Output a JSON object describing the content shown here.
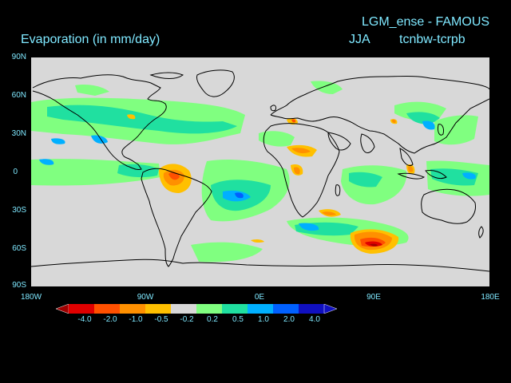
{
  "header": {
    "left_title": "Evaporation (in mm/day)",
    "right_title": "LGM_ense - FAMOUS",
    "season": "JJA",
    "experiment": "tcnbw-tcrpb"
  },
  "axes": {
    "lat_labels": [
      "90N",
      "60N",
      "30N",
      "0",
      "30S",
      "60S",
      "90S"
    ],
    "lon_labels": [
      "180W",
      "90W",
      "0E",
      "90E",
      "180E"
    ]
  },
  "colorbar": {
    "labels": [
      "-4.0",
      "-2.0",
      "-1.0",
      "-0.5",
      "-0.2",
      "0.2",
      "0.5",
      "1.0",
      "2.0",
      "4.0"
    ],
    "colors": [
      "#a00000",
      "#e00000",
      "#ff5000",
      "#ff9000",
      "#ffc000",
      "#d8d8d8",
      "#80ff80",
      "#20e0a0",
      "#00b0ff",
      "#0060ff",
      "#1010c0"
    ]
  },
  "map": {
    "background_color": "#d8d8d8",
    "coastline_color": "#000000"
  }
}
